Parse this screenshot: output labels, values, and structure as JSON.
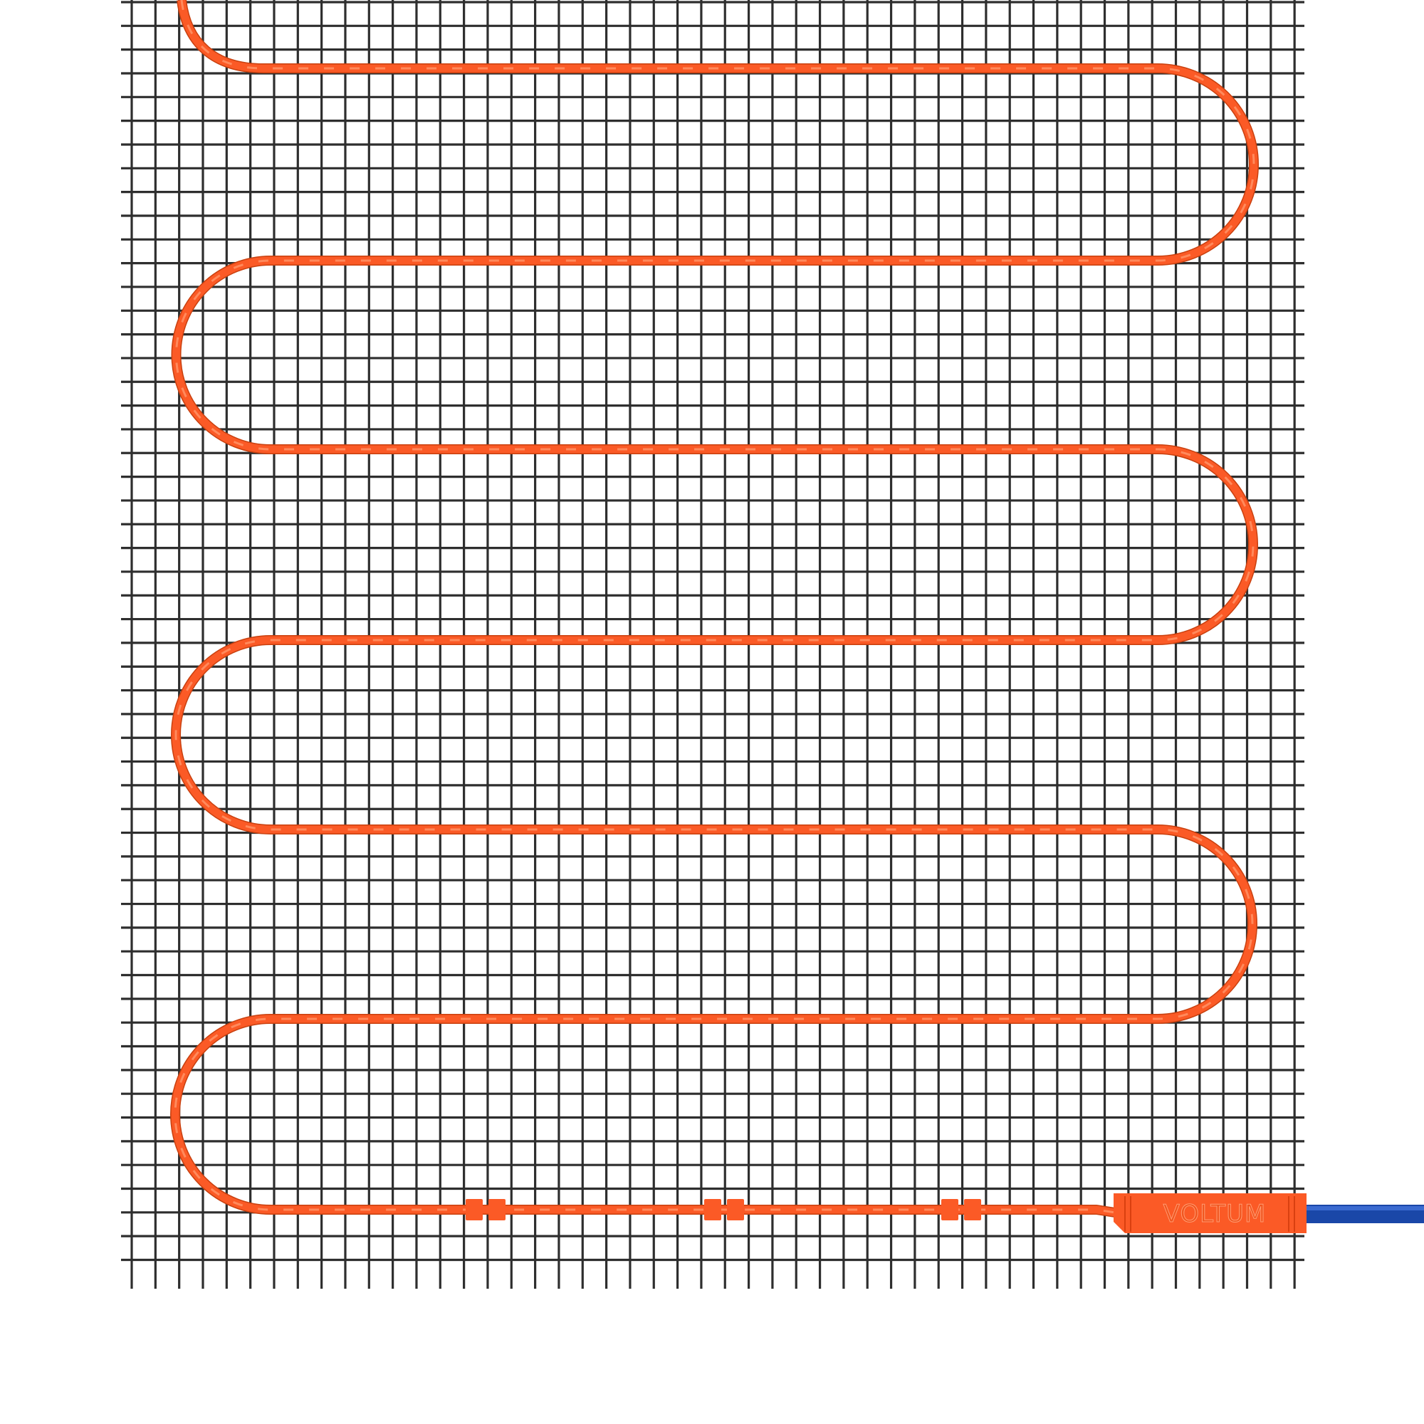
{
  "product": {
    "brand_label": "VOLTUM"
  },
  "colors": {
    "cable": "#fb5a26",
    "cable_highlight": "#ff8a5c",
    "mesh": "#2e2e2e",
    "lead_wire": "#1a47a8",
    "background": "#ffffff"
  }
}
